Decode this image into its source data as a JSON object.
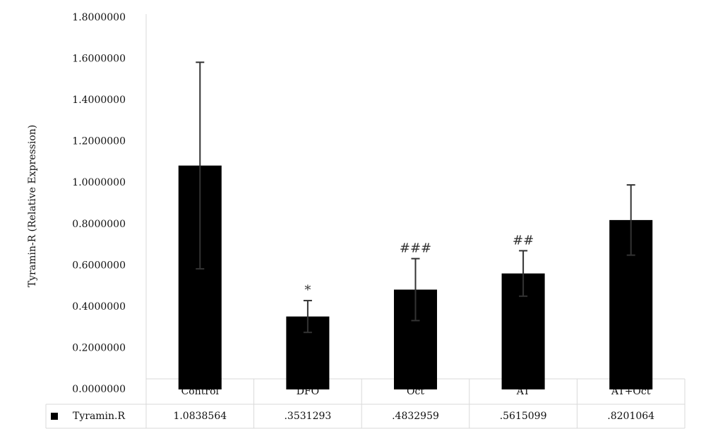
{
  "chart_data": {
    "type": "bar",
    "y_label": "Tyramin-R (Relative Expression)",
    "categories": [
      "Control",
      "DFO",
      "Oct",
      "AT",
      "AT+Oct"
    ],
    "series": [
      {
        "name": "Tyramin.R",
        "color": "#000000",
        "values": [
          1.0838564,
          0.3531293,
          0.4832959,
          0.5615099,
          0.8201064
        ],
        "value_labels": [
          "1.0838564",
          ".3531293",
          ".4832959",
          ".5615099",
          ".8201064"
        ],
        "errors": [
          0.5,
          0.077,
          0.15,
          0.11,
          0.17
        ],
        "error_color": "#333333"
      }
    ],
    "annotations": [
      null,
      "*",
      "###",
      "##",
      null
    ],
    "ylim": [
      0,
      1.8
    ],
    "yticks": [
      {
        "value": 0,
        "label": "0.0000000"
      },
      {
        "value": 0.2,
        "label": "0.2000000"
      },
      {
        "value": 0.4,
        "label": "0.4000000"
      },
      {
        "value": 0.6,
        "label": "0.6000000"
      },
      {
        "value": 0.8,
        "label": "0.8000000"
      },
      {
        "value": 1.0,
        "label": "1.0000000"
      },
      {
        "value": 1.2,
        "label": "1.2000000"
      },
      {
        "value": 1.4,
        "label": "1.4000000"
      },
      {
        "value": 1.6,
        "label": "1.6000000"
      },
      {
        "value": 1.8,
        "label": "1.8000000"
      }
    ],
    "grid": false,
    "data_table": true
  }
}
